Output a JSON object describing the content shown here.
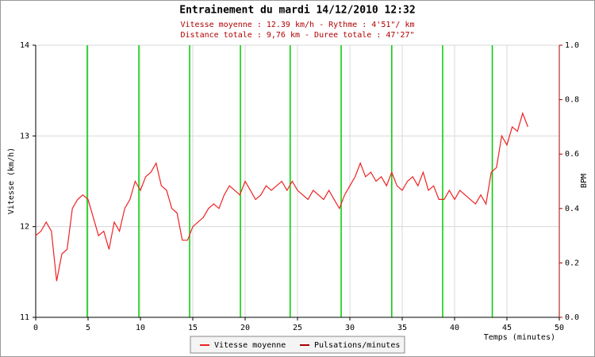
{
  "chart_data": {
    "type": "line",
    "title": "Entrainement du mardi 14/12/2010 12:32",
    "subtitle": [
      "Vitesse moyenne : 12.39 km/h - Rythme : 4'51\"/ km",
      "Distance totale : 9,76 km - Duree totale : 47'27\""
    ],
    "ylabel": "Vitesse (km/h)",
    "y2label": "BPM",
    "xlabel": "Temps (minutes)",
    "x": [
      0,
      0.5,
      1,
      1.5,
      2,
      2.5,
      3,
      3.5,
      4,
      4.5,
      5,
      5.5,
      6,
      6.5,
      7,
      7.5,
      8,
      8.5,
      9,
      9.5,
      10,
      10.5,
      11,
      11.5,
      12,
      12.5,
      13,
      13.5,
      14,
      14.5,
      15,
      15.5,
      16,
      16.5,
      17,
      17.5,
      18,
      18.5,
      19,
      19.5,
      20,
      20.5,
      21,
      21.5,
      22,
      22.5,
      23,
      23.5,
      24,
      24.5,
      25,
      25.5,
      26,
      26.5,
      27,
      27.5,
      28,
      28.5,
      29,
      29.5,
      30,
      30.5,
      31,
      31.5,
      32,
      32.5,
      33,
      33.5,
      34,
      34.5,
      35,
      35.5,
      36,
      36.5,
      37,
      37.5,
      38,
      38.5,
      39,
      39.5,
      40,
      40.5,
      41,
      41.5,
      42,
      42.5,
      43,
      43.5,
      44,
      44.5,
      45,
      45.5,
      46,
      46.5,
      47
    ],
    "series": [
      {
        "name": "Vitesse moyenne",
        "color": "#ee2222",
        "values": [
          11.9,
          11.95,
          12.05,
          11.95,
          11.4,
          11.7,
          11.75,
          12.2,
          12.3,
          12.35,
          12.3,
          12.1,
          11.9,
          11.95,
          11.75,
          12.05,
          11.95,
          12.2,
          12.3,
          12.5,
          12.4,
          12.55,
          12.6,
          12.7,
          12.45,
          12.4,
          12.2,
          12.15,
          11.85,
          11.85,
          12.0,
          12.05,
          12.1,
          12.2,
          12.25,
          12.2,
          12.35,
          12.45,
          12.4,
          12.35,
          12.5,
          12.4,
          12.3,
          12.35,
          12.45,
          12.4,
          12.45,
          12.5,
          12.4,
          12.5,
          12.4,
          12.35,
          12.3,
          12.4,
          12.35,
          12.3,
          12.4,
          12.3,
          12.2,
          12.35,
          12.45,
          12.55,
          12.7,
          12.55,
          12.6,
          12.5,
          12.55,
          12.45,
          12.6,
          12.45,
          12.4,
          12.5,
          12.55,
          12.45,
          12.6,
          12.4,
          12.45,
          12.3,
          12.3,
          12.4,
          12.3,
          12.4,
          12.35,
          12.3,
          12.25,
          12.35,
          12.25,
          12.6,
          12.65,
          13.0,
          12.9,
          13.1,
          13.05,
          13.25,
          13.1
        ]
      },
      {
        "name": "Pulsations/minutes",
        "color": "#aa0000",
        "axis": "y2",
        "values": [
          null,
          null,
          null,
          null,
          null,
          null,
          null,
          null,
          null,
          null,
          null,
          null,
          null,
          null,
          null,
          null,
          null,
          null,
          null,
          null,
          null,
          null,
          null,
          null,
          null,
          null,
          null,
          null,
          null,
          null,
          null,
          null,
          null,
          null,
          null,
          null,
          null,
          null,
          null,
          null,
          null,
          null,
          null,
          null,
          null,
          null,
          null,
          null,
          null,
          null,
          null,
          null,
          null,
          null,
          null,
          null,
          null,
          null,
          null,
          null,
          null,
          null,
          null,
          null,
          null,
          null,
          null,
          null,
          null,
          null,
          null,
          null,
          null,
          null,
          null,
          null,
          null,
          null,
          null,
          null,
          null,
          null,
          null,
          null,
          null,
          null,
          null,
          null,
          null,
          null,
          null,
          null,
          null,
          null,
          null
        ]
      }
    ],
    "markers": [
      4.92,
      9.85,
      14.7,
      19.55,
      24.3,
      29.17,
      34.0,
      38.86,
      43.6
    ],
    "marker_color": "#00cc00",
    "xlim": [
      0,
      50
    ],
    "xticks": [
      0,
      5,
      10,
      15,
      20,
      25,
      30,
      35,
      40,
      45,
      50
    ],
    "ylim": [
      11,
      14
    ],
    "yticks": [
      11,
      12,
      13,
      14
    ],
    "y2lim": [
      0,
      1
    ],
    "y2ticks": [
      {
        "value": 0,
        "label": "0.0"
      },
      0.2,
      0.4,
      0.6,
      0.8,
      {
        "value": 1,
        "label": "1.0"
      }
    ],
    "grid": true
  }
}
